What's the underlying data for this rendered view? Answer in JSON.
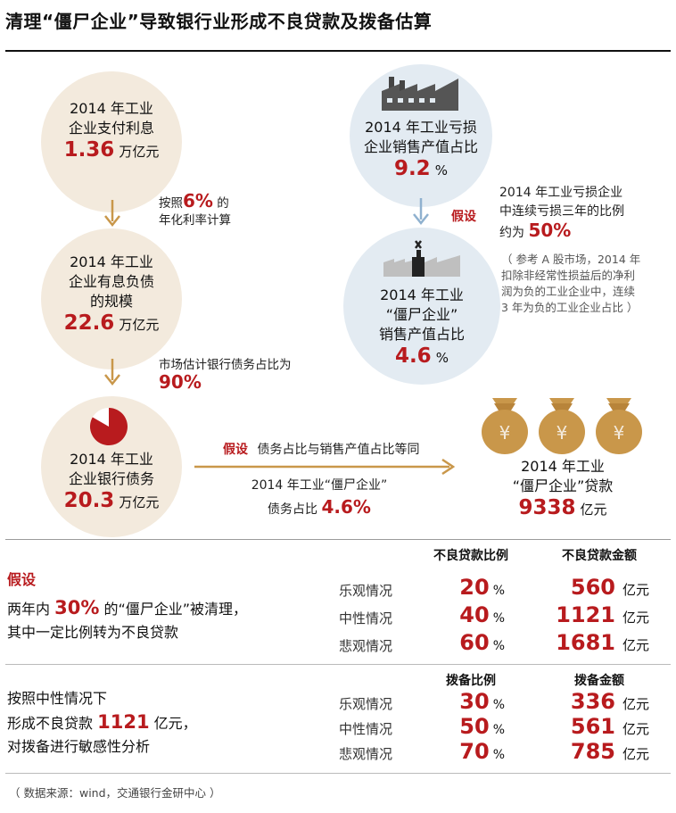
{
  "title": "清理“僵尸企业”导致银行业形成不良贷款及拨备估算",
  "flow_left": {
    "c1": {
      "line1": "2014 年工业",
      "line2": "企业支付利息",
      "value": "1.36",
      "unit": "万亿元"
    },
    "step1": {
      "prefix": "按照",
      "value": "6%",
      "suffix": "的",
      "line2": "年化利率计算"
    },
    "c2": {
      "line1": "2014 年工业",
      "line2": "企业有息负债",
      "line3": "的规模",
      "value": "22.6",
      "unit": "万亿元"
    },
    "step2": {
      "line1": "市场估计银行债务占比为",
      "value": "90%"
    },
    "c3": {
      "line1": "2014 年工业",
      "line2": "企业银行债务",
      "value": "20.3",
      "unit": "万亿元"
    }
  },
  "flow_right": {
    "c1": {
      "line1": "2014 年工业亏损",
      "line2": "企业销售产值占比",
      "value": "9.2",
      "unit": "%"
    },
    "assume_tag": "假设",
    "assume": {
      "line1": "2014 年工业亏损企业",
      "line2": "中连续亏损三年的比例",
      "prefix": "约为",
      "value": "50%"
    },
    "ref_note": [
      "（ 参考 A 股市场，2014 年",
      "扣除非经常性损益后的净利",
      "润为负的工业企业中，连续",
      "3 年为负的工业企业占比 ）"
    ],
    "c2": {
      "line1": "2014 年工业",
      "line2": "“僵尸企业”",
      "line3": "销售产值占比",
      "value": "4.6",
      "unit": "%"
    }
  },
  "middle": {
    "assume_tag": "假设",
    "assume_text": "债务占比与销售产值占比等同",
    "below1": "2014 年工业“僵尸企业”",
    "below2_prefix": "债务占比",
    "below2_value": "4.6%"
  },
  "result": {
    "bag_symbol": "¥",
    "line1": "2014 年工业",
    "line2": "“僵尸企业”贷款",
    "value": "9338",
    "unit": "亿元"
  },
  "table1": {
    "assume_tag": "假设",
    "left": {
      "prefix": "两年内",
      "value": "30%",
      "suffix": "的“僵尸企业”被清理，",
      "line2": "其中一定比例转为不良贷款"
    },
    "col1": "不良贷款比例",
    "col2": "不良贷款金额",
    "rows": [
      {
        "scenario": "乐观情况",
        "pct": "20",
        "pct_unit": "%",
        "amount": "560",
        "amount_unit": "亿元"
      },
      {
        "scenario": "中性情况",
        "pct": "40",
        "pct_unit": "%",
        "amount": "1121",
        "amount_unit": "亿元"
      },
      {
        "scenario": "悲观情况",
        "pct": "60",
        "pct_unit": "%",
        "amount": "1681",
        "amount_unit": "亿元"
      }
    ]
  },
  "table2": {
    "left": {
      "line1": "按照中性情况下",
      "prefix": "形成不良贷款",
      "value": "1121",
      "suffix": "亿元，",
      "line3": "对拨备进行敏感性分析"
    },
    "col1": "拨备比例",
    "col2": "拨备金额",
    "rows": [
      {
        "scenario": "乐观情况",
        "pct": "30",
        "pct_unit": "%",
        "amount": "336",
        "amount_unit": "亿元"
      },
      {
        "scenario": "中性情况",
        "pct": "50",
        "pct_unit": "%",
        "amount": "561",
        "amount_unit": "亿元"
      },
      {
        "scenario": "悲观情况",
        "pct": "70",
        "pct_unit": "%",
        "amount": "785",
        "amount_unit": "亿元"
      }
    ]
  },
  "source": "（ 数据来源：wind，交通银行金研中心 ）",
  "colors": {
    "accent": "#b81b1e",
    "beige": "#f3eadd",
    "blue": "#e3ebf2",
    "arrow_gold": "#c9974a",
    "arrow_blue": "#8fb1cf",
    "bag": "#c9974a"
  }
}
